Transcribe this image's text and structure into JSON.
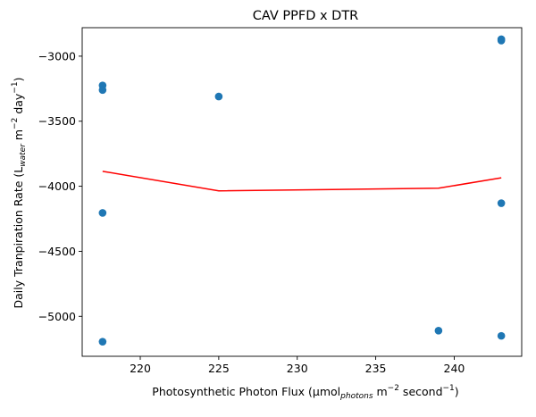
{
  "chart_data": {
    "type": "scatter",
    "title": "CAV PPFD x DTR",
    "xlabel": {
      "prefix": "Photosynthetic Photon Flux (μmol",
      "sub": "photons",
      "mid": " m",
      "sup1": "−2",
      "mid2": " second",
      "sup2": "−1",
      "suffix": ")"
    },
    "ylabel": {
      "prefix": "Daily Tranpiration Rate (L",
      "sub": "water",
      "mid": " m",
      "sup1": "−2",
      "mid2": " day",
      "sup2": "−1",
      "suffix": ")"
    },
    "xlim": [
      216.3,
      244.3
    ],
    "ylim": [
      -5307,
      -2781
    ],
    "xticks": [
      {
        "value": 220,
        "label": "220"
      },
      {
        "value": 225,
        "label": "225"
      },
      {
        "value": 230,
        "label": "230"
      },
      {
        "value": 235,
        "label": "235"
      },
      {
        "value": 240,
        "label": "240"
      }
    ],
    "yticks": [
      {
        "value": -5000,
        "label": "−5000"
      },
      {
        "value": -4500,
        "label": "−4500"
      },
      {
        "value": -4000,
        "label": "−4000"
      },
      {
        "value": -3500,
        "label": "−3500"
      },
      {
        "value": -3000,
        "label": "−3000"
      }
    ],
    "series": [
      {
        "kind": "scatter",
        "color": "#1f77b4",
        "points": [
          {
            "x": 217.6,
            "y": -3225
          },
          {
            "x": 217.6,
            "y": -3260
          },
          {
            "x": 217.6,
            "y": -4205
          },
          {
            "x": 217.6,
            "y": -5195
          },
          {
            "x": 225.0,
            "y": -3310
          },
          {
            "x": 239.0,
            "y": -5110
          },
          {
            "x": 243.0,
            "y": -2870
          },
          {
            "x": 243.0,
            "y": -2880
          },
          {
            "x": 243.0,
            "y": -4130
          },
          {
            "x": 243.0,
            "y": -5150
          }
        ]
      },
      {
        "kind": "line",
        "color": "#ff0000",
        "points": [
          {
            "x": 217.6,
            "y": -3885
          },
          {
            "x": 225.0,
            "y": -4035
          },
          {
            "x": 239.0,
            "y": -4015
          },
          {
            "x": 243.0,
            "y": -3935
          }
        ]
      }
    ],
    "grid": false,
    "legend": "none"
  }
}
